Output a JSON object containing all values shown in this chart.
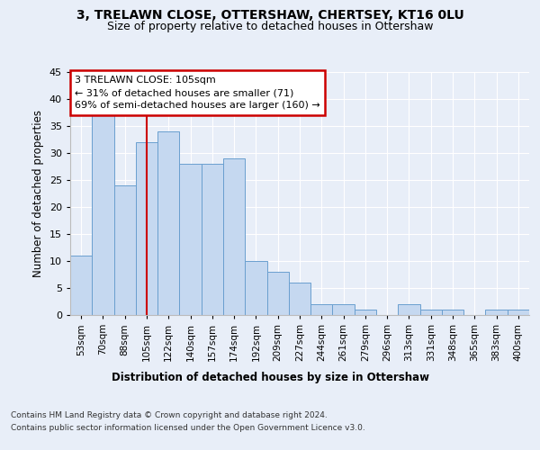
{
  "title": "3, TRELAWN CLOSE, OTTERSHAW, CHERTSEY, KT16 0LU",
  "subtitle": "Size of property relative to detached houses in Ottershaw",
  "xlabel_bottom": "Distribution of detached houses by size in Ottershaw",
  "ylabel": "Number of detached properties",
  "bin_labels": [
    "53sqm",
    "70sqm",
    "88sqm",
    "105sqm",
    "122sqm",
    "140sqm",
    "157sqm",
    "174sqm",
    "192sqm",
    "209sqm",
    "227sqm",
    "244sqm",
    "261sqm",
    "279sqm",
    "296sqm",
    "313sqm",
    "331sqm",
    "348sqm",
    "365sqm",
    "383sqm",
    "400sqm"
  ],
  "bar_heights": [
    11,
    37,
    24,
    32,
    34,
    28,
    28,
    29,
    10,
    8,
    6,
    2,
    2,
    1,
    0,
    2,
    1,
    1,
    0,
    1,
    1
  ],
  "bar_color": "#c5d8f0",
  "bar_edge_color": "#6a9fcf",
  "vline_index": 3,
  "vline_color": "#cc0000",
  "annotation_line1": "3 TRELAWN CLOSE: 105sqm",
  "annotation_line2": "← 31% of detached houses are smaller (71)",
  "annotation_line3": "69% of semi-detached houses are larger (160) →",
  "annotation_box_edgecolor": "#cc0000",
  "ylim": [
    0,
    45
  ],
  "yticks": [
    0,
    5,
    10,
    15,
    20,
    25,
    30,
    35,
    40,
    45
  ],
  "footer_line1": "Contains HM Land Registry data © Crown copyright and database right 2024.",
  "footer_line2": "Contains public sector information licensed under the Open Government Licence v3.0.",
  "bg_color": "#e8eef8",
  "grid_color": "#ffffff"
}
